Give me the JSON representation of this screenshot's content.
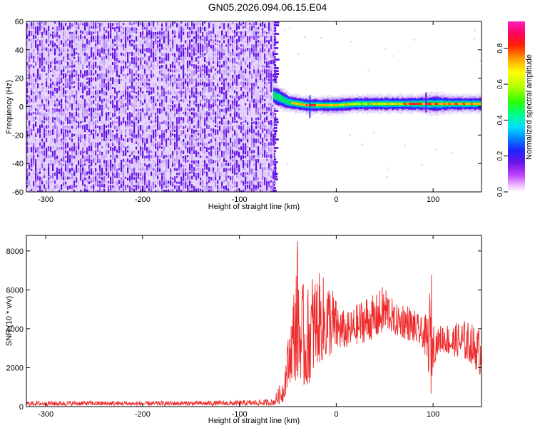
{
  "title": "GN05.2026.094.06.15.E04",
  "colors": {
    "signal_band": [
      "#ff1a1a",
      "#ffd000",
      "#00dd44",
      "#00c8ff",
      "#2010ff",
      "#7a18f0"
    ],
    "noise_dark": "#6a16e8",
    "noise_light": "#c9a7f7",
    "snr_line": "#ee2a2a"
  },
  "chart_data": [
    {
      "type": "heatmap",
      "name": "spectrogram",
      "xlabel": "Height of straight line (km)",
      "ylabel": "Frequency (Hz)",
      "xlim": [
        -320,
        150
      ],
      "ylim": [
        -60,
        60
      ],
      "xticks": [
        -300,
        -200,
        -100,
        0,
        100
      ],
      "yticks": [
        -60,
        -40,
        -20,
        0,
        20,
        40,
        60
      ],
      "grid": false,
      "colorbar": {
        "label": "Normalized spectral amplitude",
        "range": [
          0,
          0.95
        ],
        "ticks": [
          0.0,
          0.2,
          0.4,
          0.6,
          0.8
        ],
        "tick_labels": [
          "0.0",
          "0.2",
          "0.4",
          "0.6",
          "0.8"
        ],
        "colormap": [
          "#ffffff",
          "#e070ff",
          "#8a2be2",
          "#2020ff",
          "#0080ff",
          "#00ffff",
          "#00ff40",
          "#b0ff00",
          "#ffff00",
          "#ff8000",
          "#ff0000",
          "#ff00a0"
        ]
      },
      "noise_region_x": [
        -320,
        -63
      ],
      "noise_amplitude": 0.1,
      "signal_band": {
        "x": [
          -65,
          -50,
          -40,
          -30,
          -20,
          0,
          20,
          40,
          60,
          80,
          100,
          120,
          150
        ],
        "center_hz": [
          8,
          3,
          2,
          1,
          1,
          1,
          2,
          2,
          2,
          2,
          2,
          2,
          2
        ],
        "halfwidth_hz": [
          6,
          4,
          4,
          4,
          4,
          4,
          4,
          4,
          4,
          4,
          5,
          4,
          4
        ],
        "peak_amplitude": [
          0.25,
          0.45,
          0.7,
          0.8,
          0.75,
          0.75,
          0.6,
          0.6,
          0.7,
          0.85,
          0.85,
          0.8,
          0.75
        ]
      }
    },
    {
      "type": "line",
      "name": "snr",
      "xlabel": "Height of straight line (km)",
      "ylabel": "SNR (10 * v/v)",
      "xlim": [
        -320,
        150
      ],
      "ylim": [
        0,
        8800
      ],
      "xticks": [
        -300,
        -200,
        -100,
        0,
        100
      ],
      "yticks": [
        0,
        2000,
        4000,
        6000,
        8000
      ],
      "grid": false,
      "envelope": {
        "x": [
          -320,
          -250,
          -200,
          -150,
          -100,
          -65,
          -55,
          -50,
          -45,
          -40,
          -37,
          -35,
          -30,
          -25,
          -20,
          -15,
          -10,
          -5,
          0,
          10,
          20,
          30,
          40,
          50,
          55,
          60,
          70,
          80,
          90,
          95,
          98,
          100,
          105,
          110,
          120,
          130,
          140,
          150
        ],
        "upper": [
          300,
          300,
          280,
          300,
          320,
          400,
          1500,
          3500,
          5600,
          8800,
          6000,
          6400,
          6000,
          7000,
          7000,
          6700,
          6800,
          6500,
          5500,
          4800,
          5200,
          5800,
          5700,
          6400,
          6000,
          5200,
          5500,
          5000,
          4500,
          5000,
          7300,
          4500,
          4000,
          4400,
          4200,
          4500,
          4300,
          4000
        ],
        "lower": [
          50,
          60,
          50,
          60,
          60,
          60,
          200,
          1000,
          1500,
          1200,
          1500,
          800,
          1000,
          1500,
          2200,
          2300,
          2400,
          2600,
          2900,
          3000,
          3200,
          3300,
          3500,
          3800,
          3900,
          3700,
          3500,
          3300,
          3000,
          1800,
          500,
          2000,
          2800,
          2800,
          2600,
          2500,
          2200,
          1500
        ]
      }
    }
  ]
}
